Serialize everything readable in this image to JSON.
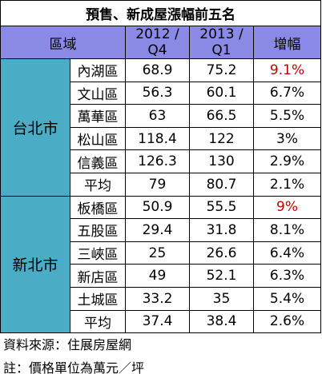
{
  "header": {
    "title": "預售、新成屋漲幅前五名"
  },
  "table": {
    "columns": [
      "區域",
      "2012 / Q4",
      "2013 / Q1",
      "增幅"
    ],
    "highlight_color": "#c00000",
    "groups": [
      {
        "name": "台北市",
        "highlight_row": 0,
        "rows": [
          [
            "內湖區",
            "68.9",
            "75.2",
            "9.1%"
          ],
          [
            "文山區",
            "56.3",
            "60.1",
            "6.7%"
          ],
          [
            "萬華區",
            "63",
            "66.5",
            "5.5%"
          ],
          [
            "松山區",
            "118.4",
            "122",
            "3%"
          ],
          [
            "信義區",
            "126.3",
            "130",
            "2.9%"
          ],
          [
            "平均",
            "79",
            "80.7",
            "2.1%"
          ]
        ]
      },
      {
        "name": "新北市",
        "highlight_row": 0,
        "rows": [
          [
            "板橋區",
            "50.9",
            "55.5",
            "9%"
          ],
          [
            "五股區",
            "29.4",
            "31.8",
            "8.1%"
          ],
          [
            "三峽區",
            "25",
            "26.6",
            "6.4%"
          ],
          [
            "新店區",
            "49",
            "52.1",
            "6.3%"
          ],
          [
            "土城區",
            "33.2",
            "35",
            "5.4%"
          ],
          [
            "平均",
            "37.4",
            "38.4",
            "2.6%"
          ]
        ]
      }
    ]
  },
  "footer": {
    "notes": [
      "資料來源：住展房屋網",
      "註：價格單位為萬元／坪"
    ]
  }
}
